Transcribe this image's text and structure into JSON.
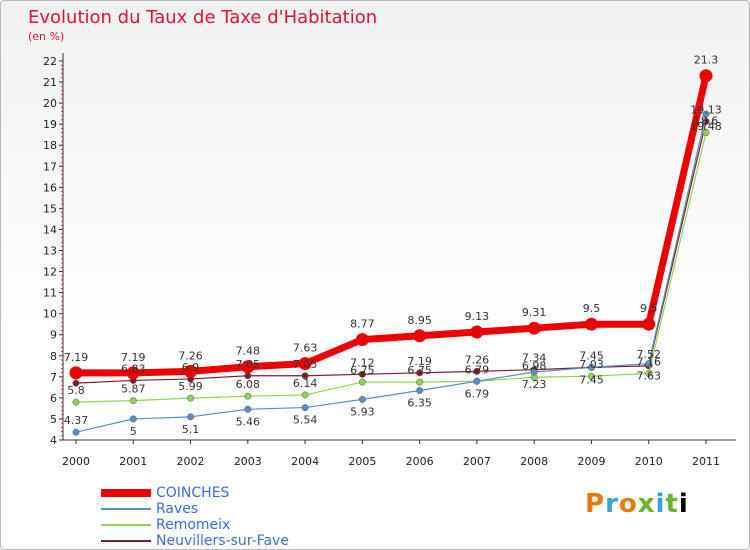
{
  "chart_data": {
    "type": "line",
    "title": "Evolution du Taux de Taxe d'Habitation",
    "subtitle": "(en %)",
    "x": [
      "2000",
      "2001",
      "2002",
      "2003",
      "2004",
      "2005",
      "2006",
      "2007",
      "2008",
      "2009",
      "2010",
      "2011"
    ],
    "y_ticks": [
      "4",
      "5",
      "6",
      "7",
      "8",
      "9",
      "10",
      "11",
      "12",
      "13",
      "14",
      "15",
      "16",
      "17",
      "18",
      "19",
      "20",
      "21",
      "22"
    ],
    "ylim": [
      4,
      22
    ],
    "grid": false,
    "legend_position": "bottom-left",
    "series": [
      {
        "name": "COINCHES",
        "color": "#ee0000",
        "values": [
          7.19,
          7.19,
          7.26,
          7.48,
          7.63,
          8.77,
          8.95,
          9.13,
          9.31,
          9.5,
          9.5,
          21.3
        ],
        "labels": [
          "7.19",
          "7.19",
          "7.26",
          "7.48",
          "7.63",
          "8.77",
          "8.95",
          "9.13",
          "9.31",
          "9.5",
          "9.5",
          "21.3"
        ]
      },
      {
        "name": "Raves",
        "color": "#5b8ec6",
        "values": [
          4.37,
          5,
          5.1,
          5.46,
          5.54,
          5.93,
          6.35,
          6.79,
          7.23,
          7.45,
          7.63,
          19.48
        ],
        "labels": [
          "4.37",
          "5",
          "5.1",
          "5.46",
          "5.54",
          "5.93",
          "6.35",
          "6.79",
          "7.23",
          "7.45",
          "7.63",
          "19.48"
        ]
      },
      {
        "name": "Remomeix",
        "color": "#8fd454",
        "values": [
          5.8,
          5.87,
          5.99,
          6.08,
          6.14,
          6.75,
          6.75,
          6.79,
          6.98,
          7.03,
          7.16,
          18.6
        ],
        "labels": [
          "5.8",
          "5.87",
          "5.99",
          "6.08",
          "6.14",
          "6.75",
          "6.75",
          "6.79",
          "6.98",
          "7.03",
          "7.16",
          "18.6"
        ]
      },
      {
        "name": "Neuvillers-sur-Fave",
        "color": "#7a1f2b",
        "values": [
          6.7,
          6.83,
          6.9,
          7.05,
          7.05,
          7.12,
          7.19,
          7.26,
          7.34,
          7.45,
          7.52,
          19.13
        ],
        "labels": [
          "",
          "6.83",
          "6.9",
          "7.05",
          "7.05",
          "7.12",
          "7.19",
          "7.26",
          "7.34",
          "7.45",
          "7.52",
          "19.13"
        ]
      }
    ]
  },
  "legend": [
    {
      "name": "COINCHES",
      "color": "#ee0000"
    },
    {
      "name": "Raves",
      "color": "#5b8ec6"
    },
    {
      "name": "Remomeix",
      "color": "#8fd454"
    },
    {
      "name": "Neuvillers-sur-Fave",
      "color": "#7a1f2b"
    }
  ],
  "logo": [
    "P",
    "r",
    "o",
    "x",
    "i",
    "t",
    "i"
  ]
}
